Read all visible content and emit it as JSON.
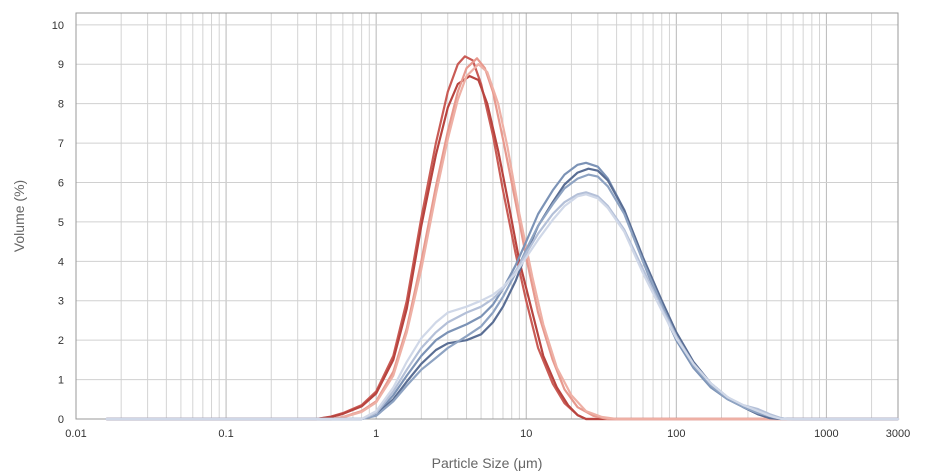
{
  "chart_data": {
    "type": "line",
    "xscale": "log",
    "xlabel": "Particle Size (μm)",
    "ylabel": "Volume (%)",
    "xlim": [
      0.01,
      3000
    ],
    "ylim": [
      0,
      10.3
    ],
    "xticks": [
      {
        "value": 0.01,
        "label": "0.01"
      },
      {
        "value": 0.1,
        "label": "0.1"
      },
      {
        "value": 1,
        "label": "1"
      },
      {
        "value": 10,
        "label": "10"
      },
      {
        "value": 100,
        "label": "100"
      },
      {
        "value": 1000,
        "label": "1000"
      },
      {
        "value": 3000,
        "label": "3000"
      }
    ],
    "yticks": [
      0,
      1,
      2,
      3,
      4,
      5,
      6,
      7,
      8,
      9,
      10
    ],
    "grid": true,
    "legend": "none",
    "series": [
      {
        "color": "#c95b55",
        "points": [
          [
            0.016,
            0
          ],
          [
            0.4,
            0
          ],
          [
            0.5,
            0.06
          ],
          [
            0.6,
            0.15
          ],
          [
            0.8,
            0.35
          ],
          [
            1.0,
            0.7
          ],
          [
            1.3,
            1.6
          ],
          [
            1.6,
            3.0
          ],
          [
            2.0,
            5.1
          ],
          [
            2.5,
            7.0
          ],
          [
            3.0,
            8.3
          ],
          [
            3.5,
            9.0
          ],
          [
            3.9,
            9.2
          ],
          [
            4.4,
            9.1
          ],
          [
            5.0,
            8.5
          ],
          [
            6.0,
            7.2
          ],
          [
            7.0,
            5.8
          ],
          [
            8.5,
            4.2
          ],
          [
            10,
            3.0
          ],
          [
            12,
            1.8
          ],
          [
            15,
            0.9
          ],
          [
            18,
            0.4
          ],
          [
            22,
            0.1
          ],
          [
            25,
            0
          ],
          [
            3000,
            0
          ]
        ]
      },
      {
        "color": "#b8443f",
        "points": [
          [
            0.016,
            0
          ],
          [
            0.4,
            0
          ],
          [
            0.5,
            0.05
          ],
          [
            0.6,
            0.13
          ],
          [
            0.8,
            0.32
          ],
          [
            1.0,
            0.65
          ],
          [
            1.3,
            1.5
          ],
          [
            1.6,
            2.8
          ],
          [
            2.0,
            4.9
          ],
          [
            2.5,
            6.7
          ],
          [
            3.0,
            7.9
          ],
          [
            3.5,
            8.5
          ],
          [
            4.2,
            8.7
          ],
          [
            4.8,
            8.6
          ],
          [
            5.5,
            8.0
          ],
          [
            6.5,
            6.8
          ],
          [
            7.5,
            5.6
          ],
          [
            9,
            4.0
          ],
          [
            11,
            2.7
          ],
          [
            13,
            1.6
          ],
          [
            16,
            0.8
          ],
          [
            19,
            0.35
          ],
          [
            22,
            0.1
          ],
          [
            25,
            0
          ],
          [
            3000,
            0
          ]
        ]
      },
      {
        "color": "#e7998e",
        "points": [
          [
            0.016,
            0
          ],
          [
            0.5,
            0
          ],
          [
            0.6,
            0.05
          ],
          [
            0.8,
            0.2
          ],
          [
            1.0,
            0.45
          ],
          [
            1.3,
            1.2
          ],
          [
            1.6,
            2.3
          ],
          [
            2.0,
            4.0
          ],
          [
            2.5,
            5.9
          ],
          [
            3.0,
            7.3
          ],
          [
            3.5,
            8.3
          ],
          [
            4.0,
            8.9
          ],
          [
            4.7,
            9.15
          ],
          [
            5.3,
            8.9
          ],
          [
            6.0,
            8.3
          ],
          [
            7.0,
            7.1
          ],
          [
            8.5,
            5.5
          ],
          [
            10,
            4.1
          ],
          [
            12,
            2.7
          ],
          [
            15,
            1.5
          ],
          [
            18,
            0.75
          ],
          [
            22,
            0.3
          ],
          [
            28,
            0.08
          ],
          [
            35,
            0
          ],
          [
            3000,
            0
          ]
        ]
      },
      {
        "color": "#eeb0a5",
        "points": [
          [
            0.016,
            0
          ],
          [
            0.5,
            0
          ],
          [
            0.6,
            0.04
          ],
          [
            0.8,
            0.18
          ],
          [
            1.0,
            0.42
          ],
          [
            1.3,
            1.1
          ],
          [
            1.6,
            2.2
          ],
          [
            2.0,
            3.8
          ],
          [
            2.5,
            5.7
          ],
          [
            3.0,
            7.1
          ],
          [
            3.5,
            8.1
          ],
          [
            4.0,
            8.7
          ],
          [
            4.8,
            9.0
          ],
          [
            5.5,
            8.8
          ],
          [
            6.5,
            8.0
          ],
          [
            7.5,
            6.9
          ],
          [
            9,
            5.2
          ],
          [
            11,
            3.6
          ],
          [
            13,
            2.4
          ],
          [
            16,
            1.3
          ],
          [
            20,
            0.6
          ],
          [
            25,
            0.2
          ],
          [
            32,
            0.05
          ],
          [
            40,
            0
          ],
          [
            3000,
            0
          ]
        ]
      },
      {
        "color": "#7c93b6",
        "points": [
          [
            0.016,
            0
          ],
          [
            0.8,
            0
          ],
          [
            1.0,
            0.12
          ],
          [
            1.3,
            0.6
          ],
          [
            1.6,
            1.1
          ],
          [
            2.0,
            1.6
          ],
          [
            2.5,
            2.0
          ],
          [
            3.0,
            2.2
          ],
          [
            4.0,
            2.4
          ],
          [
            5.0,
            2.6
          ],
          [
            6.0,
            2.9
          ],
          [
            7.0,
            3.3
          ],
          [
            8.5,
            3.9
          ],
          [
            10,
            4.5
          ],
          [
            12,
            5.2
          ],
          [
            15,
            5.8
          ],
          [
            18,
            6.2
          ],
          [
            22,
            6.45
          ],
          [
            25,
            6.5
          ],
          [
            30,
            6.4
          ],
          [
            35,
            6.1
          ],
          [
            45,
            5.3
          ],
          [
            60,
            4.0
          ],
          [
            80,
            2.8
          ],
          [
            100,
            2.0
          ],
          [
            130,
            1.3
          ],
          [
            170,
            0.8
          ],
          [
            220,
            0.5
          ],
          [
            280,
            0.3
          ],
          [
            350,
            0.12
          ],
          [
            450,
            0.02
          ],
          [
            600,
            0
          ],
          [
            3000,
            0
          ]
        ]
      },
      {
        "color": "#5a6e94",
        "points": [
          [
            0.016,
            0
          ],
          [
            0.8,
            0
          ],
          [
            1.0,
            0.1
          ],
          [
            1.3,
            0.5
          ],
          [
            1.6,
            0.95
          ],
          [
            2.0,
            1.4
          ],
          [
            2.5,
            1.75
          ],
          [
            3.0,
            1.92
          ],
          [
            4.0,
            2.0
          ],
          [
            5.0,
            2.15
          ],
          [
            6.0,
            2.45
          ],
          [
            7.0,
            2.85
          ],
          [
            8.5,
            3.5
          ],
          [
            10,
            4.2
          ],
          [
            12,
            4.9
          ],
          [
            15,
            5.5
          ],
          [
            18,
            5.95
          ],
          [
            22,
            6.25
          ],
          [
            26,
            6.35
          ],
          [
            30,
            6.3
          ],
          [
            35,
            6.05
          ],
          [
            45,
            5.3
          ],
          [
            60,
            4.1
          ],
          [
            80,
            3.0
          ],
          [
            100,
            2.2
          ],
          [
            130,
            1.45
          ],
          [
            170,
            0.9
          ],
          [
            220,
            0.55
          ],
          [
            280,
            0.3
          ],
          [
            350,
            0.12
          ],
          [
            420,
            0.02
          ],
          [
            500,
            0
          ],
          [
            3000,
            0
          ]
        ]
      },
      {
        "color": "#8ea3c2",
        "points": [
          [
            0.016,
            0
          ],
          [
            0.8,
            0
          ],
          [
            1.0,
            0.08
          ],
          [
            1.3,
            0.45
          ],
          [
            1.6,
            0.85
          ],
          [
            2.0,
            1.25
          ],
          [
            2.5,
            1.55
          ],
          [
            3.0,
            1.8
          ],
          [
            4.0,
            2.1
          ],
          [
            5.0,
            2.35
          ],
          [
            6.0,
            2.7
          ],
          [
            7.0,
            3.1
          ],
          [
            8.5,
            3.7
          ],
          [
            10,
            4.3
          ],
          [
            12,
            4.9
          ],
          [
            15,
            5.45
          ],
          [
            18,
            5.85
          ],
          [
            22,
            6.1
          ],
          [
            26,
            6.2
          ],
          [
            30,
            6.15
          ],
          [
            35,
            5.9
          ],
          [
            45,
            5.2
          ],
          [
            60,
            4.0
          ],
          [
            80,
            2.9
          ],
          [
            100,
            2.1
          ],
          [
            130,
            1.35
          ],
          [
            170,
            0.85
          ],
          [
            220,
            0.5
          ],
          [
            280,
            0.3
          ],
          [
            350,
            0.15
          ],
          [
            450,
            0.04
          ],
          [
            550,
            0
          ],
          [
            3000,
            0
          ]
        ]
      },
      {
        "color": "#b4c0d8",
        "points": [
          [
            0.016,
            0
          ],
          [
            0.8,
            0
          ],
          [
            1.0,
            0.15
          ],
          [
            1.3,
            0.7
          ],
          [
            1.6,
            1.25
          ],
          [
            2.0,
            1.8
          ],
          [
            2.5,
            2.2
          ],
          [
            3.0,
            2.45
          ],
          [
            4.0,
            2.7
          ],
          [
            5.0,
            2.85
          ],
          [
            6.0,
            3.05
          ],
          [
            7.0,
            3.3
          ],
          [
            8.5,
            3.75
          ],
          [
            10,
            4.2
          ],
          [
            12,
            4.7
          ],
          [
            15,
            5.2
          ],
          [
            18,
            5.5
          ],
          [
            22,
            5.7
          ],
          [
            25,
            5.75
          ],
          [
            30,
            5.65
          ],
          [
            35,
            5.4
          ],
          [
            45,
            4.8
          ],
          [
            60,
            3.8
          ],
          [
            80,
            2.8
          ],
          [
            100,
            2.1
          ],
          [
            130,
            1.4
          ],
          [
            170,
            0.9
          ],
          [
            220,
            0.55
          ],
          [
            280,
            0.35
          ],
          [
            350,
            0.25
          ],
          [
            420,
            0.12
          ],
          [
            500,
            0.02
          ],
          [
            550,
            0
          ],
          [
            3000,
            0
          ]
        ]
      },
      {
        "color": "#d0d8e8",
        "points": [
          [
            0.016,
            0
          ],
          [
            0.8,
            0
          ],
          [
            1.0,
            0.2
          ],
          [
            1.3,
            0.8
          ],
          [
            1.6,
            1.45
          ],
          [
            2.0,
            2.05
          ],
          [
            2.5,
            2.45
          ],
          [
            3.0,
            2.7
          ],
          [
            4.0,
            2.85
          ],
          [
            5.0,
            3.0
          ],
          [
            6.0,
            3.15
          ],
          [
            7.0,
            3.35
          ],
          [
            8.5,
            3.7
          ],
          [
            10,
            4.1
          ],
          [
            12,
            4.55
          ],
          [
            15,
            5.05
          ],
          [
            18,
            5.4
          ],
          [
            22,
            5.65
          ],
          [
            25,
            5.7
          ],
          [
            30,
            5.6
          ],
          [
            35,
            5.35
          ],
          [
            45,
            4.75
          ],
          [
            60,
            3.7
          ],
          [
            80,
            2.75
          ],
          [
            100,
            2.05
          ],
          [
            130,
            1.4
          ],
          [
            170,
            0.9
          ],
          [
            220,
            0.55
          ],
          [
            280,
            0.35
          ],
          [
            350,
            0.2
          ],
          [
            420,
            0.08
          ],
          [
            500,
            0
          ],
          [
            3000,
            0
          ]
        ]
      }
    ]
  }
}
